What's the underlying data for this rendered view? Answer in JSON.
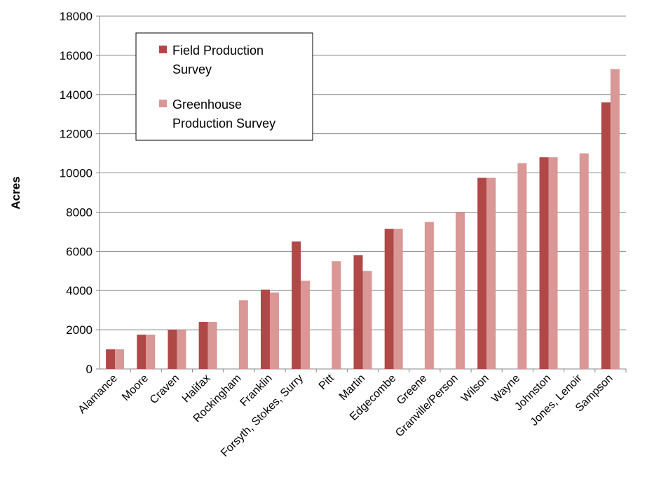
{
  "chart_data": {
    "type": "bar",
    "title": "",
    "xlabel": "",
    "ylabel": "Acres",
    "ylim": [
      0,
      18000
    ],
    "yticks": [
      0,
      2000,
      4000,
      6000,
      8000,
      10000,
      12000,
      14000,
      16000,
      18000
    ],
    "grid": true,
    "legend_position": "top-left",
    "categories": [
      "Alamance",
      "Moore",
      "Craven",
      "Halifax",
      "Rockingham",
      "Franklin",
      "Forsyth, Stokes, Surry",
      "Pitt",
      "Martin",
      "Edgecombe",
      "Greene",
      "Granville/Person",
      "Wilson",
      "Wayne",
      "Johnston",
      "Jones, Lenoir",
      "Sampson"
    ],
    "series": [
      {
        "name": "Field Production Survey",
        "color": "#b04848",
        "values": [
          1000,
          1750,
          2000,
          2400,
          0,
          4050,
          6500,
          0,
          5800,
          7150,
          0,
          0,
          9750,
          0,
          10800,
          0,
          13600
        ]
      },
      {
        "name": "Greenhouse Production Survey",
        "color": "#d99795",
        "values": [
          1000,
          1750,
          2000,
          2400,
          3500,
          3900,
          4500,
          5500,
          5000,
          7150,
          7500,
          8000,
          9750,
          10500,
          10800,
          11000,
          15300
        ]
      }
    ]
  }
}
